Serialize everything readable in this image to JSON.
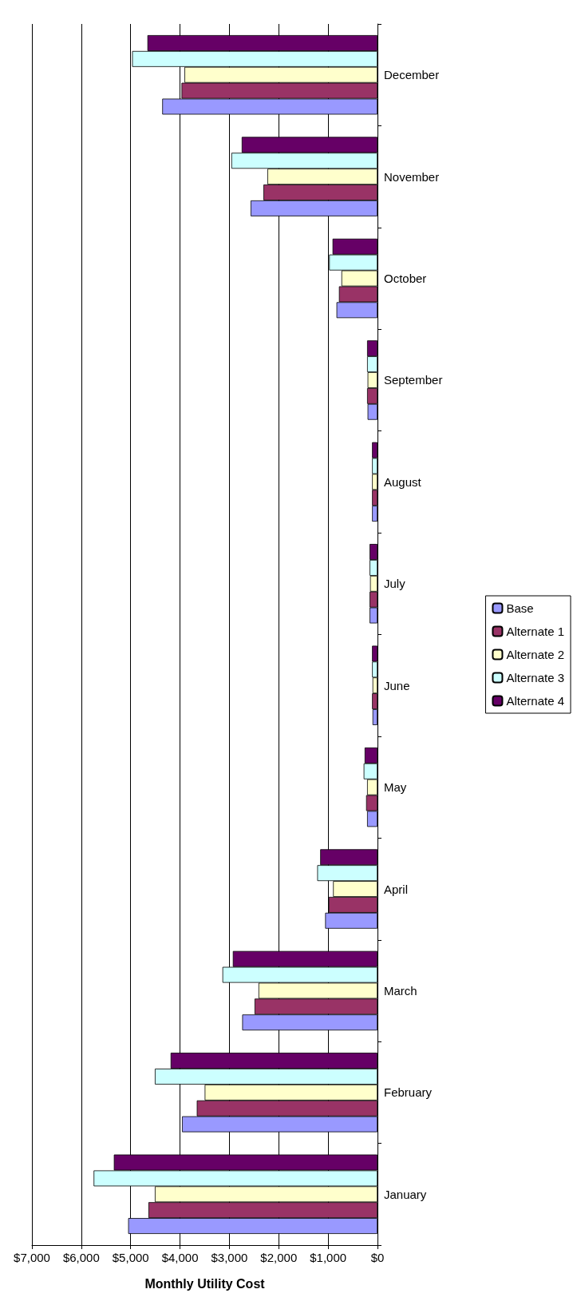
{
  "chart_data": {
    "type": "bar",
    "orientation": "horizontal",
    "xlabel": "Monthly Utility Cost",
    "categories": [
      "December",
      "November",
      "October",
      "September",
      "August",
      "July",
      "June",
      "May",
      "April",
      "March",
      "February",
      "January"
    ],
    "series": [
      {
        "name": "Base",
        "color": "#9999ff",
        "values": [
          4360,
          2570,
          830,
          200,
          110,
          160,
          100,
          210,
          1060,
          2740,
          3960,
          5050
        ]
      },
      {
        "name": "Alternate 1",
        "color": "#993366",
        "values": [
          3970,
          2310,
          780,
          210,
          110,
          160,
          110,
          230,
          990,
          2490,
          3660,
          4640
        ]
      },
      {
        "name": "Alternate 2",
        "color": "#ffffcc",
        "values": [
          3910,
          2230,
          730,
          200,
          110,
          150,
          100,
          210,
          900,
          2410,
          3500,
          4510
        ]
      },
      {
        "name": "Alternate 3",
        "color": "#ccffff",
        "values": [
          4970,
          2960,
          980,
          210,
          110,
          160,
          110,
          280,
          1220,
          3140,
          4510,
          5750
        ]
      },
      {
        "name": "Alternate 4",
        "color": "#660066",
        "values": [
          4660,
          2750,
          910,
          210,
          110,
          160,
          110,
          260,
          1160,
          2930,
          4190,
          5340
        ]
      }
    ],
    "xlim": [
      7000,
      0
    ],
    "xticks": [
      {
        "value": 7000,
        "label": "$7,000"
      },
      {
        "value": 6000,
        "label": "$6,000"
      },
      {
        "value": 5000,
        "label": "$5,000"
      },
      {
        "value": 4000,
        "label": "$4,000"
      },
      {
        "value": 3000,
        "label": "$3,000"
      },
      {
        "value": 2000,
        "label": "$2,000"
      },
      {
        "value": 1000,
        "label": "$1,000"
      },
      {
        "value": 0,
        "label": "$0"
      }
    ],
    "grid": "x",
    "legend": "right"
  }
}
